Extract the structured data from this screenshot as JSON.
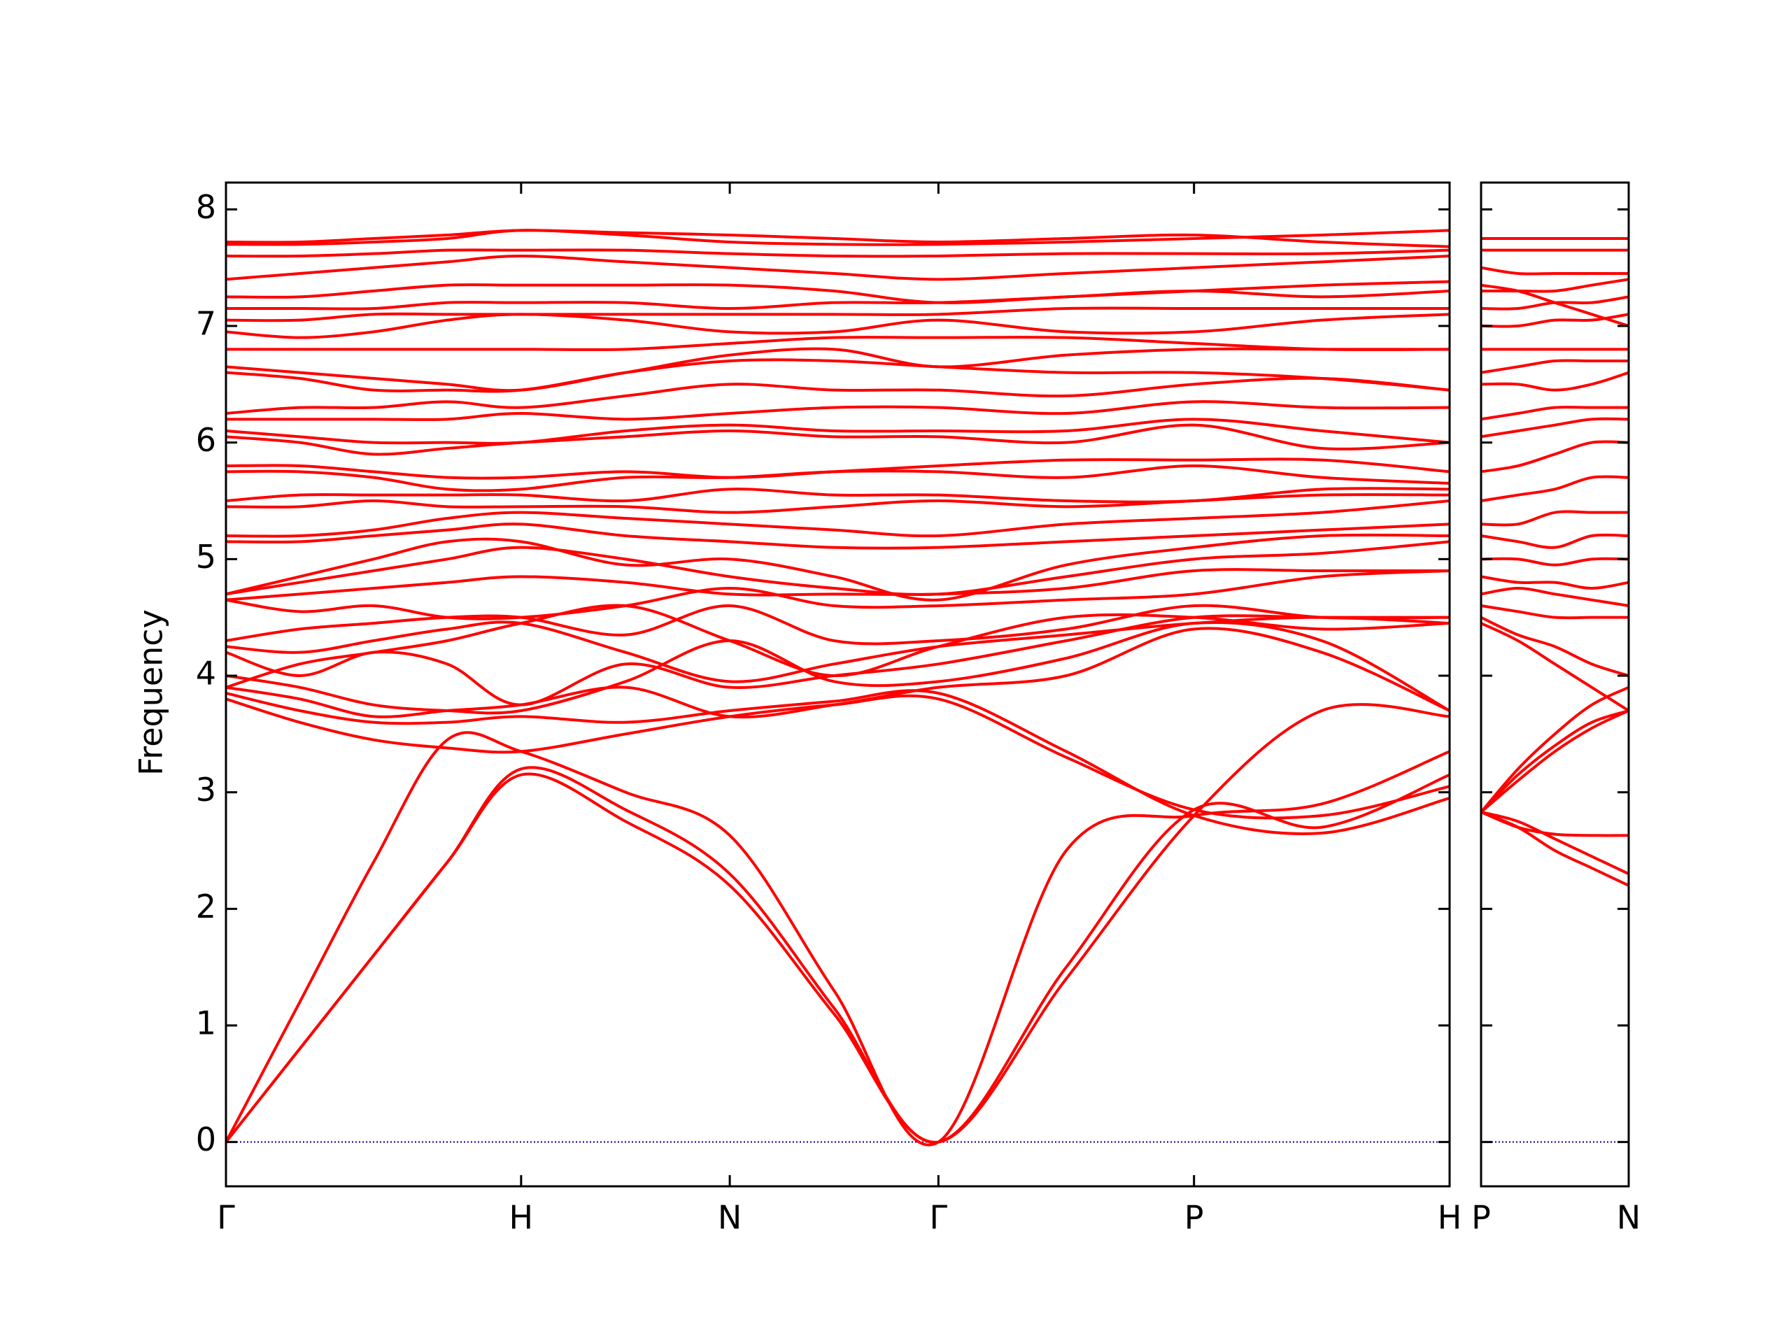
{
  "chart_data": [
    {
      "type": "line",
      "color": "#ff0000",
      "ylabel": "Frequency",
      "xlim": [
        0,
        4.146
      ],
      "ylim": [
        -0.38,
        8.23
      ],
      "xticks": [
        {
          "value": 0,
          "label": "Γ"
        },
        {
          "value": 1,
          "label": "H"
        },
        {
          "value": 1.707,
          "label": "N"
        },
        {
          "value": 2.414,
          "label": "Γ"
        },
        {
          "value": 3.28,
          "label": "P"
        },
        {
          "value": 4.146,
          "label": "H"
        }
      ],
      "yticks": [
        0,
        1,
        2,
        3,
        4,
        5,
        6,
        7,
        8
      ],
      "reference_line": {
        "y": 0,
        "color": "#00008b"
      },
      "x": [
        0,
        0.25,
        0.5,
        0.75,
        1,
        1.354,
        1.707,
        2.06,
        2.414,
        2.847,
        3.28,
        3.713,
        4.146
      ],
      "series": [
        {
          "values": [
            0,
            0.8,
            1.6,
            2.4,
            3.15,
            2.75,
            2.2,
            1.1,
            0,
            1.4,
            2.8,
            3.7,
            3.65
          ]
        },
        {
          "values": [
            0,
            0.8,
            1.6,
            2.4,
            3.2,
            2.85,
            2.3,
            1.15,
            0,
            1.5,
            2.85,
            2.7,
            3.15
          ]
        },
        {
          "values": [
            0,
            1.2,
            2.4,
            3.45,
            3.35,
            3.0,
            2.63,
            1.3,
            0,
            2.5,
            2.8,
            2.9,
            3.35
          ]
        },
        {
          "values": [
            3.8,
            3.6,
            3.45,
            3.38,
            3.35,
            3.5,
            3.65,
            3.75,
            3.8,
            3.3,
            2.85,
            2.8,
            3.05
          ]
        },
        {
          "values": [
            3.85,
            3.7,
            3.6,
            3.6,
            3.65,
            3.6,
            3.7,
            3.78,
            3.85,
            3.35,
            2.8,
            2.65,
            2.95
          ]
        },
        {
          "values": [
            3.9,
            3.8,
            3.65,
            3.7,
            3.75,
            3.9,
            3.65,
            3.75,
            3.9,
            4.0,
            4.4,
            4.2,
            3.7
          ]
        },
        {
          "values": [
            4.0,
            3.9,
            3.75,
            3.7,
            3.7,
            3.95,
            4.3,
            3.95,
            3.95,
            4.15,
            4.45,
            4.3,
            3.7
          ]
        },
        {
          "values": [
            4.2,
            4.0,
            4.2,
            4.1,
            3.75,
            4.1,
            3.9,
            4.0,
            4.1,
            4.3,
            4.5,
            4.5,
            4.5
          ]
        },
        {
          "values": [
            4.25,
            4.2,
            4.3,
            4.4,
            4.45,
            4.2,
            3.95,
            4.1,
            4.25,
            4.35,
            4.45,
            4.5,
            4.45
          ]
        },
        {
          "values": [
            4.3,
            4.4,
            4.45,
            4.5,
            4.5,
            4.35,
            4.6,
            4.3,
            4.3,
            4.4,
            4.6,
            4.5,
            4.5
          ]
        },
        {
          "values": [
            3.9,
            4.1,
            4.2,
            4.3,
            4.45,
            4.6,
            4.3,
            4.0,
            4.25,
            4.5,
            4.5,
            4.4,
            4.45
          ]
        },
        {
          "values": [
            4.65,
            4.55,
            4.6,
            4.5,
            4.5,
            4.6,
            4.75,
            4.6,
            4.6,
            4.65,
            4.7,
            4.85,
            4.9
          ]
        },
        {
          "values": [
            4.65,
            4.7,
            4.75,
            4.8,
            4.85,
            4.8,
            4.7,
            4.7,
            4.7,
            4.75,
            4.9,
            4.9,
            4.9
          ]
        },
        {
          "values": [
            4.7,
            4.8,
            4.9,
            5.0,
            5.1,
            5.0,
            4.85,
            4.75,
            4.7,
            4.85,
            5.0,
            5.05,
            5.15
          ]
        },
        {
          "values": [
            4.7,
            4.85,
            5.0,
            5.15,
            5.15,
            4.95,
            5.0,
            4.85,
            4.65,
            4.95,
            5.1,
            5.2,
            5.2
          ]
        },
        {
          "values": [
            5.15,
            5.15,
            5.2,
            5.25,
            5.3,
            5.2,
            5.15,
            5.1,
            5.1,
            5.15,
            5.2,
            5.25,
            5.3
          ]
        },
        {
          "values": [
            5.2,
            5.2,
            5.25,
            5.35,
            5.4,
            5.35,
            5.3,
            5.25,
            5.2,
            5.3,
            5.35,
            5.4,
            5.5
          ]
        },
        {
          "values": [
            5.45,
            5.45,
            5.5,
            5.45,
            5.45,
            5.45,
            5.4,
            5.45,
            5.5,
            5.45,
            5.5,
            5.55,
            5.55
          ]
        },
        {
          "values": [
            5.5,
            5.55,
            5.55,
            5.55,
            5.55,
            5.5,
            5.6,
            5.55,
            5.55,
            5.5,
            5.5,
            5.6,
            5.6
          ]
        },
        {
          "values": [
            5.75,
            5.75,
            5.7,
            5.6,
            5.6,
            5.7,
            5.7,
            5.75,
            5.75,
            5.7,
            5.8,
            5.7,
            5.65
          ]
        },
        {
          "values": [
            5.8,
            5.8,
            5.75,
            5.7,
            5.7,
            5.75,
            5.7,
            5.75,
            5.8,
            5.85,
            5.85,
            5.85,
            5.75
          ]
        },
        {
          "values": [
            6.05,
            6.0,
            5.9,
            5.95,
            6.0,
            6.05,
            6.1,
            6.05,
            6.05,
            6.0,
            6.15,
            5.95,
            6.0
          ]
        },
        {
          "values": [
            6.1,
            6.05,
            6.0,
            6.0,
            6.0,
            6.1,
            6.15,
            6.1,
            6.1,
            6.1,
            6.2,
            6.1,
            6.0
          ]
        },
        {
          "values": [
            6.2,
            6.2,
            6.2,
            6.2,
            6.25,
            6.2,
            6.25,
            6.3,
            6.3,
            6.25,
            6.35,
            6.3,
            6.3
          ]
        },
        {
          "values": [
            6.25,
            6.3,
            6.3,
            6.35,
            6.3,
            6.4,
            6.5,
            6.45,
            6.45,
            6.4,
            6.5,
            6.55,
            6.45
          ]
        },
        {
          "values": [
            6.6,
            6.55,
            6.45,
            6.45,
            6.45,
            6.6,
            6.7,
            6.7,
            6.65,
            6.6,
            6.6,
            6.55,
            6.45
          ]
        },
        {
          "values": [
            6.65,
            6.6,
            6.55,
            6.5,
            6.45,
            6.6,
            6.75,
            6.8,
            6.65,
            6.75,
            6.8,
            6.8,
            6.8
          ]
        },
        {
          "values": [
            6.8,
            6.8,
            6.8,
            6.8,
            6.8,
            6.8,
            6.85,
            6.9,
            6.9,
            6.9,
            6.85,
            6.8,
            6.8
          ]
        },
        {
          "values": [
            6.95,
            6.9,
            6.95,
            7.05,
            7.1,
            7.05,
            6.95,
            6.95,
            7.05,
            6.95,
            6.95,
            7.05,
            7.1
          ]
        },
        {
          "values": [
            7.05,
            7.05,
            7.1,
            7.1,
            7.1,
            7.1,
            7.1,
            7.1,
            7.1,
            7.15,
            7.15,
            7.15,
            7.15
          ]
        },
        {
          "values": [
            7.15,
            7.15,
            7.15,
            7.2,
            7.2,
            7.2,
            7.15,
            7.2,
            7.2,
            7.25,
            7.3,
            7.25,
            7.3
          ]
        },
        {
          "values": [
            7.25,
            7.25,
            7.3,
            7.35,
            7.35,
            7.35,
            7.35,
            7.3,
            7.2,
            7.25,
            7.3,
            7.35,
            7.38
          ]
        },
        {
          "values": [
            7.4,
            7.45,
            7.5,
            7.55,
            7.6,
            7.55,
            7.5,
            7.45,
            7.4,
            7.45,
            7.5,
            7.55,
            7.6
          ]
        },
        {
          "values": [
            7.6,
            7.6,
            7.62,
            7.65,
            7.65,
            7.65,
            7.62,
            7.6,
            7.6,
            7.62,
            7.62,
            7.62,
            7.65
          ]
        },
        {
          "values": [
            7.7,
            7.7,
            7.72,
            7.75,
            7.82,
            7.78,
            7.72,
            7.7,
            7.7,
            7.72,
            7.75,
            7.78,
            7.82
          ]
        },
        {
          "values": [
            7.72,
            7.72,
            7.75,
            7.78,
            7.82,
            7.8,
            7.78,
            7.75,
            7.72,
            7.75,
            7.78,
            7.72,
            7.68
          ]
        }
      ]
    },
    {
      "type": "line",
      "color": "#ff0000",
      "xlim": [
        0,
        0.5
      ],
      "ylim": [
        -0.38,
        8.23
      ],
      "xticks": [
        {
          "value": 0,
          "label": "P"
        },
        {
          "value": 0.5,
          "label": "N"
        }
      ],
      "reference_line": {
        "y": 0,
        "color": "#00008b"
      },
      "x": [
        0,
        0.125,
        0.25,
        0.375,
        0.5
      ],
      "series": [
        {
          "values": [
            2.83,
            2.7,
            2.5,
            2.35,
            2.2
          ]
        },
        {
          "values": [
            2.83,
            2.75,
            2.6,
            2.45,
            2.3
          ]
        },
        {
          "values": [
            2.83,
            2.7,
            2.64,
            2.63,
            2.63
          ]
        },
        {
          "values": [
            2.83,
            3.1,
            3.35,
            3.55,
            3.7
          ]
        },
        {
          "values": [
            2.83,
            3.15,
            3.4,
            3.6,
            3.7
          ]
        },
        {
          "values": [
            2.83,
            3.2,
            3.5,
            3.75,
            3.9
          ]
        },
        {
          "values": [
            4.45,
            4.3,
            4.1,
            3.9,
            3.7
          ]
        },
        {
          "values": [
            4.5,
            4.35,
            4.25,
            4.1,
            4.0
          ]
        },
        {
          "values": [
            4.6,
            4.55,
            4.5,
            4.5,
            4.5
          ]
        },
        {
          "values": [
            4.7,
            4.75,
            4.7,
            4.65,
            4.6
          ]
        },
        {
          "values": [
            4.85,
            4.8,
            4.8,
            4.75,
            4.8
          ]
        },
        {
          "values": [
            5.0,
            5.0,
            4.95,
            5.0,
            5.0
          ]
        },
        {
          "values": [
            5.2,
            5.15,
            5.1,
            5.2,
            5.2
          ]
        },
        {
          "values": [
            5.3,
            5.3,
            5.4,
            5.4,
            5.4
          ]
        },
        {
          "values": [
            5.5,
            5.55,
            5.6,
            5.7,
            5.7
          ]
        },
        {
          "values": [
            5.75,
            5.8,
            5.9,
            6.0,
            6.0
          ]
        },
        {
          "values": [
            6.05,
            6.1,
            6.15,
            6.2,
            6.2
          ]
        },
        {
          "values": [
            6.2,
            6.25,
            6.3,
            6.3,
            6.3
          ]
        },
        {
          "values": [
            6.5,
            6.5,
            6.45,
            6.5,
            6.6
          ]
        },
        {
          "values": [
            6.6,
            6.65,
            6.7,
            6.7,
            6.7
          ]
        },
        {
          "values": [
            6.8,
            6.8,
            6.8,
            6.8,
            6.8
          ]
        },
        {
          "values": [
            7.0,
            7.0,
            7.05,
            7.05,
            7.1
          ]
        },
        {
          "values": [
            7.15,
            7.15,
            7.2,
            7.2,
            7.25
          ]
        },
        {
          "values": [
            7.3,
            7.3,
            7.3,
            7.35,
            7.4
          ]
        },
        {
          "values": [
            7.35,
            7.3,
            7.2,
            7.1,
            7.0
          ]
        },
        {
          "values": [
            7.5,
            7.45,
            7.45,
            7.45,
            7.45
          ]
        },
        {
          "values": [
            7.65,
            7.65,
            7.65,
            7.65,
            7.65
          ]
        },
        {
          "values": [
            7.75,
            7.75,
            7.75,
            7.75,
            7.75
          ]
        }
      ]
    }
  ]
}
